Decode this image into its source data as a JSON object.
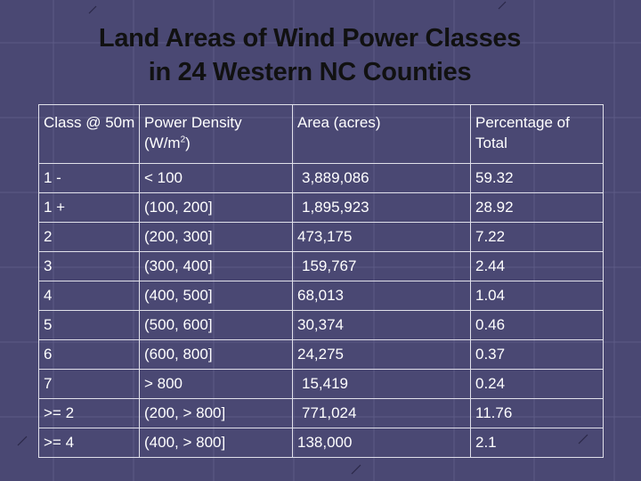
{
  "slide": {
    "title_line1": "Land Areas of Wind Power Classes",
    "title_line2": "in 24 Western NC Counties"
  },
  "table": {
    "headers": {
      "class": "Class @ 50m",
      "power_prefix": "Power Density (W/m",
      "power_sup": "2",
      "power_suffix": ")",
      "area": "Area (acres)",
      "pct": "Percentage of Total"
    },
    "rows": [
      {
        "cls": "1 -",
        "power": "< 100",
        "area": "3,889,086",
        "pct": "59.32"
      },
      {
        "cls": "1 +",
        "power": "(100, 200]",
        "area": "1,895,923",
        "pct": "28.92"
      },
      {
        "cls": "2",
        "power": "(200, 300]",
        "area": "473,175",
        "pct": "7.22"
      },
      {
        "cls": "3",
        "power": "(300, 400]",
        "area": "159,767",
        "pct": "2.44"
      },
      {
        "cls": "4",
        "power": "(400, 500]",
        "area": "68,013",
        "pct": "1.04"
      },
      {
        "cls": "5",
        "power": "(500, 600]",
        "area": "30,374",
        "pct": "0.46"
      },
      {
        "cls": "6",
        "power": "(600, 800]",
        "area": "24,275",
        "pct": "0.37"
      },
      {
        "cls": "7",
        "power": "> 800",
        "area": "15,419",
        "pct": "0.24"
      },
      {
        "cls": ">= 2",
        "power": "(200, > 800]",
        "area": "771,024",
        "pct": "11.76"
      },
      {
        "cls": ">= 4",
        "power": "(400, > 800]",
        "area": "138,000",
        "pct": "2.1"
      }
    ]
  }
}
